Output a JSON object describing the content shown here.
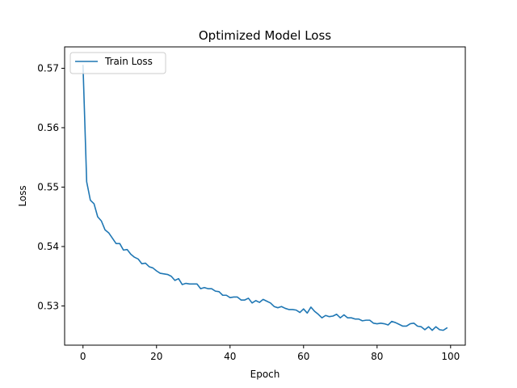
{
  "chart_data": {
    "type": "line",
    "title": "Optimized Model Loss",
    "xlabel": "Epoch",
    "ylabel": "Loss",
    "xlim": [
      -5,
      104
    ],
    "ylim": [
      0.5234,
      0.5736
    ],
    "xticks": [
      0,
      20,
      40,
      60,
      80,
      100
    ],
    "yticks": [
      0.53,
      0.54,
      0.55,
      0.56,
      0.57
    ],
    "ytick_labels": [
      "0.53",
      "0.54",
      "0.55",
      "0.56",
      "0.57"
    ],
    "grid": false,
    "legend": {
      "placement": "top-left",
      "entries": [
        "Train Loss"
      ]
    },
    "series": [
      {
        "name": "Train Loss",
        "color": "#1f77b4",
        "x": [
          0,
          1,
          2,
          3,
          4,
          5,
          6,
          7,
          8,
          9,
          10,
          11,
          12,
          13,
          14,
          15,
          16,
          17,
          18,
          19,
          20,
          21,
          22,
          23,
          24,
          25,
          26,
          27,
          28,
          29,
          30,
          31,
          32,
          33,
          34,
          35,
          36,
          37,
          38,
          39,
          40,
          41,
          42,
          43,
          44,
          45,
          46,
          47,
          48,
          49,
          50,
          51,
          52,
          53,
          54,
          55,
          56,
          57,
          58,
          59,
          60,
          61,
          62,
          63,
          64,
          65,
          66,
          67,
          68,
          69,
          70,
          71,
          72,
          73,
          74,
          75,
          76,
          77,
          78,
          79,
          80,
          81,
          82,
          83,
          84,
          85,
          86,
          87,
          88,
          89,
          90,
          91,
          92,
          93,
          94,
          95,
          96,
          97,
          98,
          99
        ],
        "values": [
          0.5705,
          0.5509,
          0.5478,
          0.5472,
          0.545,
          0.5443,
          0.5428,
          0.5423,
          0.5414,
          0.5405,
          0.5405,
          0.5394,
          0.5395,
          0.5387,
          0.5382,
          0.5379,
          0.5371,
          0.5372,
          0.5366,
          0.5364,
          0.5359,
          0.5355,
          0.5354,
          0.5353,
          0.535,
          0.5343,
          0.5346,
          0.5336,
          0.5338,
          0.5337,
          0.5337,
          0.5337,
          0.5329,
          0.5331,
          0.5329,
          0.5329,
          0.5325,
          0.5324,
          0.5318,
          0.5318,
          0.5314,
          0.5315,
          0.5315,
          0.531,
          0.531,
          0.5313,
          0.5305,
          0.5309,
          0.5306,
          0.5311,
          0.5308,
          0.5305,
          0.5299,
          0.5297,
          0.5299,
          0.5296,
          0.5294,
          0.5294,
          0.5293,
          0.5289,
          0.5295,
          0.5288,
          0.5298,
          0.5291,
          0.5286,
          0.528,
          0.5284,
          0.5282,
          0.5283,
          0.5286,
          0.528,
          0.5285,
          0.528,
          0.528,
          0.5278,
          0.5278,
          0.5275,
          0.5276,
          0.5276,
          0.5271,
          0.527,
          0.5271,
          0.527,
          0.5268,
          0.5274,
          0.5272,
          0.5269,
          0.5266,
          0.5266,
          0.527,
          0.5271,
          0.5266,
          0.5265,
          0.526,
          0.5265,
          0.5259,
          0.5265,
          0.526,
          0.5259,
          0.5263
        ]
      }
    ]
  }
}
